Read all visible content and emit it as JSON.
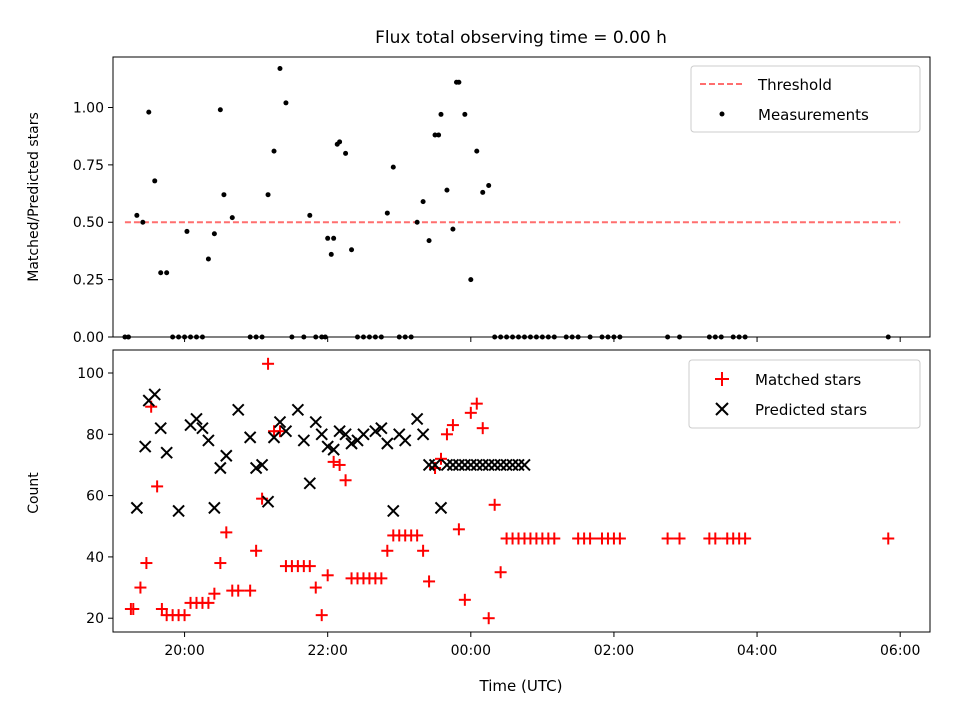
{
  "figure": {
    "title": "Flux total observing time = 0.00 h",
    "xlabel": "Time (UTC)"
  },
  "chart_data": [
    {
      "type": "scatter",
      "title": "Flux total observing time = 0.00 h",
      "ylabel": "Matched/Predicted stars",
      "xlabel": "",
      "xlim": [
        "19:00",
        "06:25"
      ],
      "ylim": [
        0,
        1.22
      ],
      "yticks": [
        "0.00",
        "0.25",
        "0.50",
        "0.75",
        "1.00"
      ],
      "legend": {
        "placement": "top-right",
        "entries": [
          "Threshold",
          "Measurements"
        ]
      },
      "threshold": {
        "name": "Threshold",
        "value": 0.5,
        "x_start": "19:10",
        "x_end": "06:00",
        "color": "#ff6e6e",
        "style": "dashed"
      },
      "series": [
        {
          "name": "Measurements",
          "color": "#000000",
          "marker": "dot",
          "x": [
            "19:10",
            "19:13",
            "19:20",
            "19:25",
            "19:30",
            "19:35",
            "19:40",
            "19:45",
            "19:50",
            "19:55",
            "20:00",
            "20:02",
            "20:05",
            "20:10",
            "20:15",
            "20:20",
            "20:25",
            "20:30",
            "20:33",
            "20:40",
            "20:55",
            "21:00",
            "21:05",
            "21:10",
            "21:15",
            "21:20",
            "21:25",
            "21:30",
            "21:40",
            "21:45",
            "21:50",
            "21:55",
            "21:58",
            "22:00",
            "22:03",
            "22:05",
            "22:08",
            "22:10",
            "22:15",
            "22:20",
            "22:25",
            "22:30",
            "22:35",
            "22:40",
            "22:45",
            "22:50",
            "22:55",
            "23:00",
            "23:05",
            "23:10",
            "23:15",
            "23:20",
            "23:25",
            "23:30",
            "23:33",
            "23:35",
            "23:40",
            "23:45",
            "23:48",
            "23:50",
            "23:55",
            "00:00",
            "00:05",
            "00:10",
            "00:15",
            "00:20",
            "00:25",
            "00:30",
            "00:35",
            "00:40",
            "00:45",
            "00:50",
            "00:55",
            "01:00",
            "01:05",
            "01:10",
            "01:20",
            "01:25",
            "01:30",
            "01:40",
            "01:50",
            "01:55",
            "02:00",
            "02:05",
            "02:45",
            "02:55",
            "03:20",
            "03:25",
            "03:30",
            "03:40",
            "03:45",
            "03:50",
            "05:50"
          ],
          "y": [
            0.0,
            0.0,
            0.53,
            0.5,
            0.98,
            0.68,
            0.28,
            0.28,
            0.0,
            0.0,
            0.0,
            0.46,
            0.0,
            0.0,
            0.0,
            0.34,
            0.45,
            0.99,
            0.62,
            0.52,
            0.0,
            0.0,
            0.0,
            0.62,
            0.81,
            1.17,
            1.02,
            0.0,
            0.0,
            0.53,
            0.0,
            0.0,
            0.0,
            0.43,
            0.36,
            0.43,
            0.84,
            0.85,
            0.8,
            0.38,
            0.0,
            0.0,
            0.0,
            0.0,
            0.0,
            0.54,
            0.74,
            0.0,
            0.0,
            0.0,
            0.5,
            0.59,
            0.42,
            0.88,
            0.88,
            0.97,
            0.64,
            0.47,
            1.11,
            1.11,
            0.97,
            0.25,
            0.81,
            0.63,
            0.66,
            0.0,
            0.0,
            0.0,
            0.0,
            0.0,
            0.0,
            0.0,
            0.0,
            0.0,
            0.0,
            0.0,
            0.0,
            0.0,
            0.0,
            0.0,
            0.0,
            0.0,
            0.0,
            0.0,
            0.0,
            0.0,
            0.0,
            0.0,
            0.0,
            0.0,
            0.0,
            0.0,
            0.0
          ]
        }
      ]
    },
    {
      "type": "scatter",
      "title": "",
      "ylabel": "Count",
      "xlabel": "Time (UTC)",
      "xlim": [
        "19:00",
        "06:25"
      ],
      "ylim": [
        15.5,
        107.5
      ],
      "yticks": [
        "20",
        "40",
        "60",
        "80",
        "100"
      ],
      "xticks": [
        "20:00",
        "22:00",
        "00:00",
        "02:00",
        "04:00",
        "06:00"
      ],
      "legend": {
        "placement": "top-right",
        "entries": [
          "Matched stars",
          "Predicted stars"
        ]
      },
      "series": [
        {
          "name": "Matched stars",
          "color": "#ff0000",
          "marker": "plus",
          "x": [
            "19:15",
            "19:17",
            "19:23",
            "19:28",
            "19:32",
            "19:37",
            "19:41",
            "19:45",
            "19:50",
            "19:55",
            "20:00",
            "20:05",
            "20:10",
            "20:15",
            "20:20",
            "20:25",
            "20:30",
            "20:35",
            "20:40",
            "20:45",
            "20:55",
            "21:00",
            "21:05",
            "21:10",
            "21:15",
            "21:20",
            "21:25",
            "21:30",
            "21:35",
            "21:40",
            "21:45",
            "21:50",
            "21:55",
            "22:00",
            "22:05",
            "22:10",
            "22:15",
            "22:20",
            "22:25",
            "22:30",
            "22:35",
            "22:40",
            "22:45",
            "22:50",
            "22:55",
            "23:00",
            "23:05",
            "23:10",
            "23:15",
            "23:20",
            "23:25",
            "23:30",
            "23:35",
            "23:40",
            "23:45",
            "23:50",
            "23:55",
            "00:00",
            "00:05",
            "00:10",
            "00:15",
            "00:20",
            "00:25",
            "00:30",
            "00:35",
            "00:40",
            "00:45",
            "00:50",
            "00:55",
            "01:00",
            "01:05",
            "01:10",
            "01:30",
            "01:35",
            "01:40",
            "01:50",
            "01:55",
            "02:00",
            "02:05",
            "02:45",
            "02:55",
            "03:20",
            "03:25",
            "03:35",
            "03:40",
            "03:45",
            "03:50",
            "05:50"
          ],
          "y": [
            23,
            23,
            30,
            38,
            89,
            63,
            23,
            21,
            21,
            21,
            21,
            25,
            25,
            25,
            25,
            28,
            38,
            48,
            29,
            29,
            29,
            42,
            59,
            103,
            81,
            81,
            37,
            37,
            37,
            37,
            37,
            30,
            21,
            34,
            71,
            70,
            65,
            33,
            33,
            33,
            33,
            33,
            33,
            42,
            47,
            47,
            47,
            47,
            47,
            42,
            32,
            69,
            72,
            80,
            83,
            49,
            26,
            87,
            90,
            82,
            20,
            57,
            35,
            46,
            46,
            46,
            46,
            46,
            46,
            46,
            46,
            46,
            46,
            46,
            46,
            46,
            46,
            46,
            46,
            46,
            46,
            46,
            46,
            46,
            46,
            46,
            46,
            46
          ]
        },
        {
          "name": "Predicted stars",
          "color": "#000000",
          "marker": "x",
          "x": [
            "19:20",
            "19:27",
            "19:30",
            "19:35",
            "19:40",
            "19:45",
            "19:55",
            "20:05",
            "20:10",
            "20:15",
            "20:20",
            "20:25",
            "20:30",
            "20:35",
            "20:45",
            "20:55",
            "21:00",
            "21:05",
            "21:10",
            "21:15",
            "21:20",
            "21:25",
            "21:35",
            "21:40",
            "21:45",
            "21:50",
            "21:55",
            "22:00",
            "22:05",
            "22:10",
            "22:15",
            "22:20",
            "22:25",
            "22:30",
            "22:40",
            "22:45",
            "22:50",
            "22:55",
            "23:00",
            "23:05",
            "23:15",
            "23:20",
            "23:25",
            "23:30",
            "23:35",
            "23:40",
            "23:45",
            "23:50",
            "23:55",
            "00:00",
            "00:05",
            "00:10",
            "00:15",
            "00:20",
            "00:25",
            "00:30",
            "00:35",
            "00:40",
            "00:45"
          ],
          "y": [
            56,
            76,
            91,
            93,
            82,
            74,
            55,
            83,
            85,
            82,
            78,
            56,
            69,
            73,
            88,
            79,
            69,
            70,
            58,
            79,
            84,
            81,
            88,
            78,
            64,
            84,
            80,
            76,
            75,
            81,
            80,
            77,
            78,
            80,
            81,
            82,
            77,
            55,
            80,
            78,
            85,
            80,
            70,
            70,
            56,
            70,
            70,
            70,
            70,
            70,
            70,
            70,
            70,
            70,
            70,
            70,
            70,
            70,
            70
          ]
        }
      ]
    }
  ]
}
